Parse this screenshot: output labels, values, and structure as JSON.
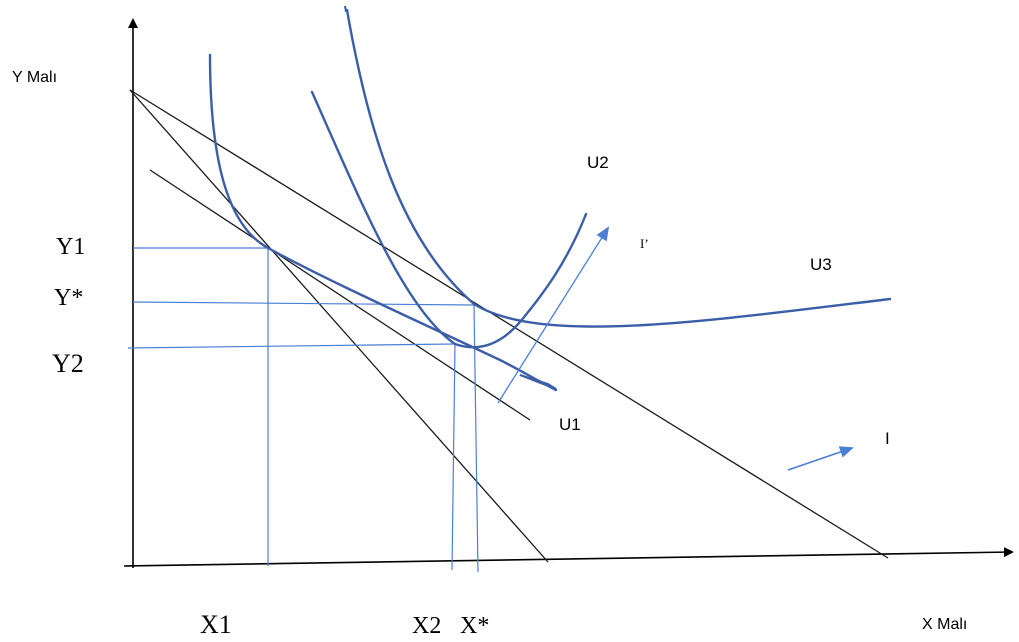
{
  "axes": {
    "y_axis_label": "Y Malı",
    "x_axis_label": "X Malı"
  },
  "tick_labels": {
    "y1": "Y1",
    "y_star": "Y*",
    "y2": "Y2",
    "x1": "X1",
    "x2": "X2",
    "x_star": "X*"
  },
  "curve_labels": {
    "u1": "U1",
    "u2": "U2",
    "u3": "U3"
  },
  "budget_labels": {
    "i": "I",
    "i_prime": "I’"
  },
  "colors": {
    "axis": "#000000",
    "budget_line": "#1a1a1a",
    "indifference_curve": "#3a5ea8",
    "guide_line": "#4a7fd6",
    "arrow": "#4a7fd6"
  }
}
